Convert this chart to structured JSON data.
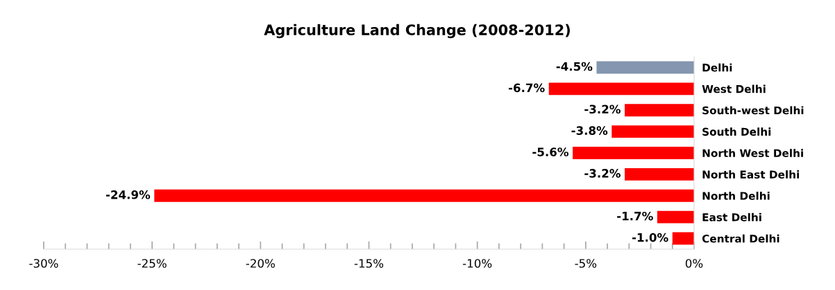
{
  "chart_data": {
    "type": "bar",
    "orientation": "horizontal",
    "title": "Agriculture Land Change (2008-2012)",
    "categories": [
      "Delhi",
      "West Delhi",
      "South-west Delhi",
      "South Delhi",
      "North West Delhi",
      "North East Delhi",
      "North Delhi",
      "East Delhi",
      "Central Delhi"
    ],
    "values": [
      -4.5,
      -6.7,
      -3.2,
      -3.8,
      -5.6,
      -3.2,
      -24.9,
      -1.7,
      -1.0
    ],
    "colors": [
      "#8496b0",
      "#ff0000",
      "#ff0000",
      "#ff0000",
      "#ff0000",
      "#ff0000",
      "#ff0000",
      "#ff0000",
      "#ff0000"
    ],
    "value_labels": [
      "-4.5%",
      "-6.7%",
      "-3.2%",
      "-3.8%",
      "-5.6%",
      "-3.2%",
      "-24.9%",
      "-1.7%",
      "-1.0%"
    ],
    "xlim": [
      -30,
      0
    ],
    "xticks": [
      {
        "value": -30,
        "label": "-30%"
      },
      {
        "value": -29,
        "label": null
      },
      {
        "value": -28,
        "label": null
      },
      {
        "value": -27,
        "label": null
      },
      {
        "value": -26,
        "label": null
      },
      {
        "value": -25,
        "label": "-25%"
      },
      {
        "value": -24,
        "label": null
      },
      {
        "value": -23,
        "label": null
      },
      {
        "value": -22,
        "label": null
      },
      {
        "value": -21,
        "label": null
      },
      {
        "value": -20,
        "label": "-20%"
      },
      {
        "value": -19,
        "label": null
      },
      {
        "value": -18,
        "label": null
      },
      {
        "value": -17,
        "label": null
      },
      {
        "value": -16,
        "label": null
      },
      {
        "value": -15,
        "label": "-15%"
      },
      {
        "value": -14,
        "label": null
      },
      {
        "value": -13,
        "label": null
      },
      {
        "value": -12,
        "label": null
      },
      {
        "value": -11,
        "label": null
      },
      {
        "value": -10,
        "label": "-10%"
      },
      {
        "value": -9,
        "label": null
      },
      {
        "value": -8,
        "label": null
      },
      {
        "value": -7,
        "label": null
      },
      {
        "value": -6,
        "label": null
      },
      {
        "value": -5,
        "label": "-5%"
      },
      {
        "value": -4,
        "label": null
      },
      {
        "value": -3,
        "label": null
      },
      {
        "value": -2,
        "label": null
      },
      {
        "value": -1,
        "label": null
      },
      {
        "value": 0,
        "label": "0%"
      }
    ],
    "grid": false,
    "legend": false
  }
}
